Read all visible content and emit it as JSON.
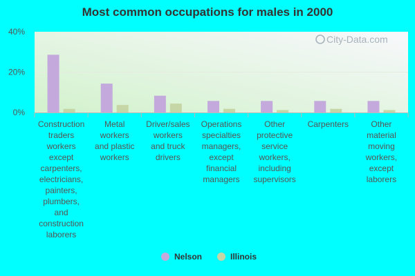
{
  "chart_data": {
    "type": "bar",
    "title": "Most common occupations for males in 2000",
    "xlabel": "",
    "ylabel": "",
    "ylim": [
      0,
      40
    ],
    "y_ticks": [
      "0%",
      "20%",
      "40%"
    ],
    "y_tick_values": [
      0,
      20,
      40
    ],
    "categories": [
      "Construction traders workers except carpenters, electricians, painters, plumbers, and construction laborers",
      "Metal workers and plastic workers",
      "Driver/sales workers and truck drivers",
      "Operations specialties managers, except financial managers",
      "Other protective service workers, including supervisors",
      "Carpenters",
      "Other material moving workers, except laborers"
    ],
    "category_lines": [
      [
        "Construction",
        "traders",
        "workers",
        "except",
        "carpenters,",
        "electricians,",
        "painters,",
        "plumbers,",
        "and",
        "construction",
        "laborers"
      ],
      [
        "Metal",
        "workers",
        "and plastic",
        "workers"
      ],
      [
        "Driver/sales",
        "workers",
        "and truck",
        "drivers"
      ],
      [
        "Operations",
        "specialties",
        "managers,",
        "except",
        "financial",
        "managers"
      ],
      [
        "Other",
        "protective",
        "service",
        "workers,",
        "including",
        "supervisors"
      ],
      [
        "Carpenters"
      ],
      [
        "Other",
        "material",
        "moving",
        "workers,",
        "except",
        "laborers"
      ]
    ],
    "series": [
      {
        "name": "Nelson",
        "color": "#c3a9dc",
        "values": [
          28.6,
          14.3,
          8.3,
          5.7,
          5.7,
          5.7,
          5.7
        ]
      },
      {
        "name": "Illinois",
        "color": "#c7d6a6",
        "values": [
          1.8,
          3.7,
          4.4,
          1.8,
          1.2,
          1.8,
          1.2
        ]
      }
    ],
    "legend_position": "bottom-center",
    "grid": true
  },
  "watermark": "City-Data.com",
  "colors": {
    "background": "#00ffff",
    "plot_bg_left": "#d2f2cc",
    "plot_bg_right": "#f8f8fc",
    "axis": "#bbbbbb",
    "grid": "#e4ece0"
  }
}
